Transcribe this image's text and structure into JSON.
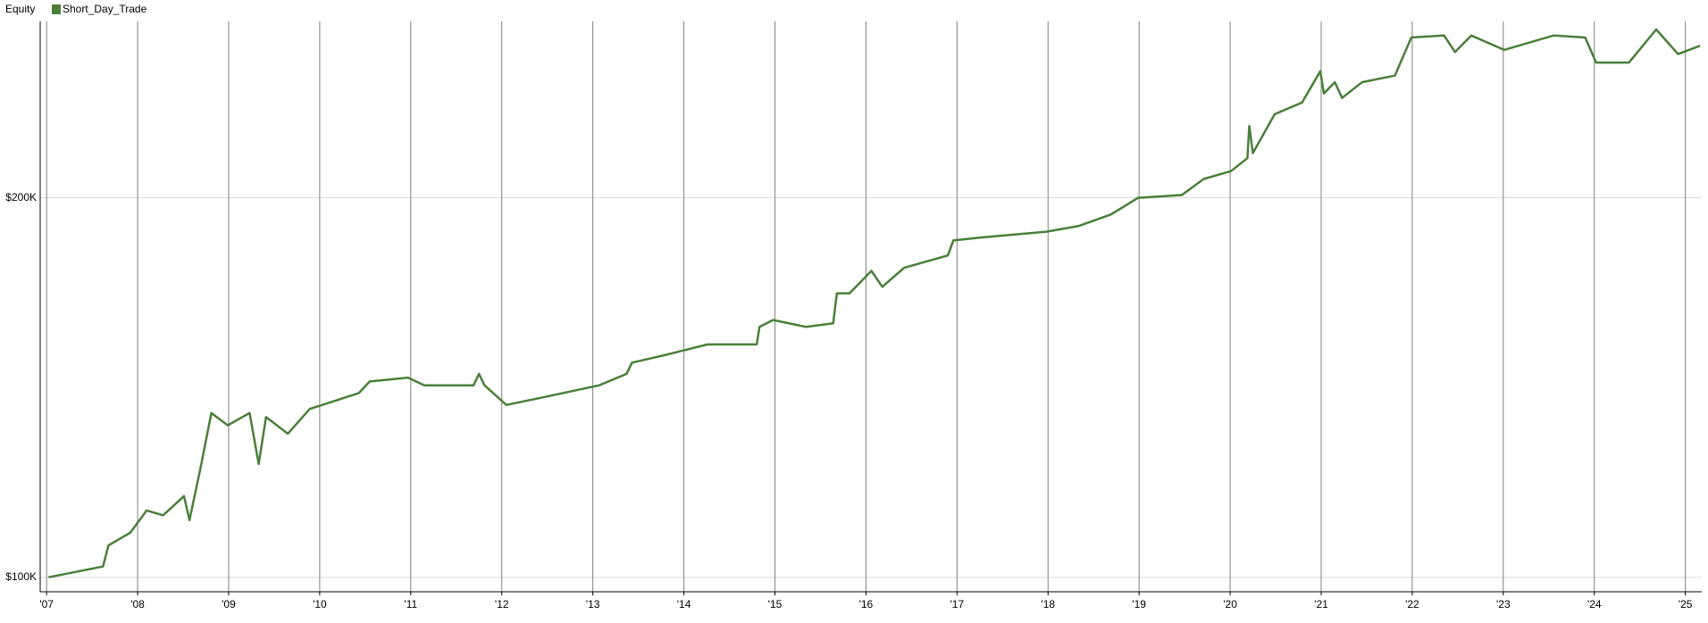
{
  "chart_data": {
    "type": "line",
    "title": "Equity",
    "x": [
      2007.02,
      2007.62,
      2007.68,
      2007.92,
      2008.1,
      2008.28,
      2008.51,
      2008.57,
      2008.69,
      2008.81,
      2008.99,
      2009.23,
      2009.33,
      2009.41,
      2009.65,
      2009.89,
      2010.43,
      2010.55,
      2010.97,
      2011.15,
      2011.69,
      2011.75,
      2011.81,
      2012.05,
      2012.47,
      2013.07,
      2013.37,
      2013.43,
      2013.78,
      2014.26,
      2014.8,
      2014.83,
      2014.98,
      2015.34,
      2015.64,
      2015.68,
      2015.82,
      2016.06,
      2016.18,
      2016.42,
      2016.9,
      2016.96,
      2017.26,
      2017.98,
      2018.34,
      2018.69,
      2018.99,
      2019.47,
      2019.71,
      2020.01,
      2020.19,
      2020.21,
      2020.25,
      2020.49,
      2020.79,
      2020.99,
      2021.03,
      2021.15,
      2021.23,
      2021.45,
      2021.81,
      2021.99,
      2022.35,
      2022.47,
      2022.65,
      2023.01,
      2023.55,
      2023.9,
      2024.02,
      2024.38,
      2024.68,
      2024.92,
      2025.16
    ],
    "series": [
      {
        "name": "Short_Day_Trade",
        "color": "#4a7f3a",
        "values": [
          100000,
          102000,
          106000,
          108500,
          113000,
          112000,
          116000,
          111000,
          122000,
          135000,
          132000,
          135000,
          123000,
          134000,
          130000,
          136000,
          140000,
          143000,
          144000,
          142000,
          142000,
          145000,
          142000,
          137000,
          139000,
          142000,
          145000,
          148000,
          150000,
          153000,
          153000,
          158000,
          160000,
          158000,
          159000,
          168000,
          168000,
          175000,
          170000,
          176000,
          180000,
          185000,
          186000,
          188000,
          190000,
          194000,
          200000,
          201000,
          207000,
          210000,
          215000,
          228000,
          217000,
          233000,
          238000,
          252000,
          242000,
          247000,
          240000,
          247000,
          250000,
          268000,
          269000,
          261000,
          269000,
          262000,
          269000,
          268000,
          256000,
          256000,
          272000,
          260000,
          264000
        ]
      }
    ],
    "xlim": [
      2006.93,
      2025.18
    ],
    "xticks": [
      {
        "value": 2007,
        "label": "'07"
      },
      {
        "value": 2008,
        "label": "'08"
      },
      {
        "value": 2009,
        "label": "'09"
      },
      {
        "value": 2010,
        "label": "'10"
      },
      {
        "value": 2011,
        "label": "'11"
      },
      {
        "value": 2012,
        "label": "'12"
      },
      {
        "value": 2013,
        "label": "'13"
      },
      {
        "value": 2014,
        "label": "'14"
      },
      {
        "value": 2015,
        "label": "'15"
      },
      {
        "value": 2016,
        "label": "'16"
      },
      {
        "value": 2017,
        "label": "'17"
      },
      {
        "value": 2018,
        "label": "'18"
      },
      {
        "value": 2019,
        "label": "'19"
      },
      {
        "value": 2020,
        "label": "'20"
      },
      {
        "value": 2021,
        "label": "'21"
      },
      {
        "value": 2022,
        "label": "'22"
      },
      {
        "value": 2023,
        "label": "'23"
      },
      {
        "value": 2024,
        "label": "'24"
      },
      {
        "value": 2025,
        "label": "'25"
      }
    ],
    "ylim": [
      97400,
      276000
    ],
    "yticks": [
      {
        "value": 100000,
        "label": "$100K"
      },
      {
        "value": 200000,
        "label": "$200K"
      }
    ],
    "log_y": true,
    "grid": true
  }
}
